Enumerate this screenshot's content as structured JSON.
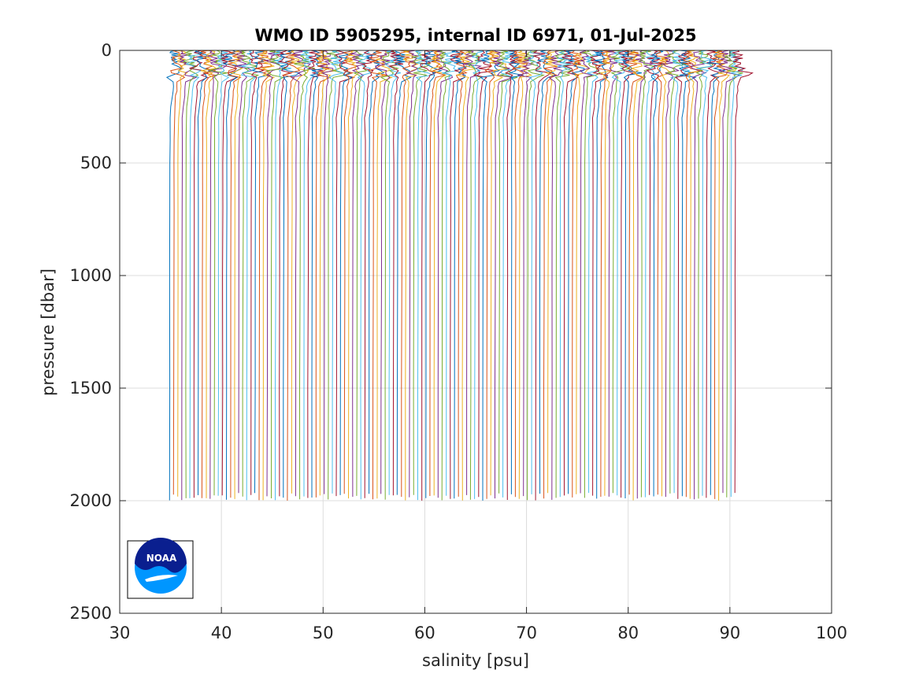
{
  "chart_data": {
    "type": "line",
    "title": "WMO ID 5905295, internal ID 6971, 01-Jul-2025",
    "xlabel": "salinity [psu]",
    "ylabel": "pressure [dbar]",
    "xlim": [
      30,
      100
    ],
    "ylim": [
      0,
      2500
    ],
    "y_reversed": true,
    "grid": true,
    "xticks": [
      30,
      40,
      50,
      60,
      70,
      80,
      90,
      100
    ],
    "yticks": [
      0,
      500,
      1000,
      1500,
      2000,
      2500
    ],
    "x_tick_labels": [
      "30",
      "40",
      "50",
      "60",
      "70",
      "80",
      "90",
      "100"
    ],
    "y_tick_labels": [
      "0",
      "500",
      "1000",
      "1500",
      "2000",
      "2500"
    ],
    "series_description": "Stacked salinity profiles, each successive profile offset by ~0.4 psu",
    "profile_count": 140,
    "first_profile_deep_salinity": 34.9,
    "profile_offset_psu": 0.4,
    "max_pressure": 2000,
    "colors": [
      "#0072bd",
      "#d95319",
      "#edb120",
      "#7e2f8e",
      "#77ac30",
      "#4dbeee",
      "#a2142f"
    ]
  },
  "logo": {
    "text": "NOAA",
    "colors": {
      "dark": "#0a1f8f",
      "light": "#0096ff"
    }
  }
}
